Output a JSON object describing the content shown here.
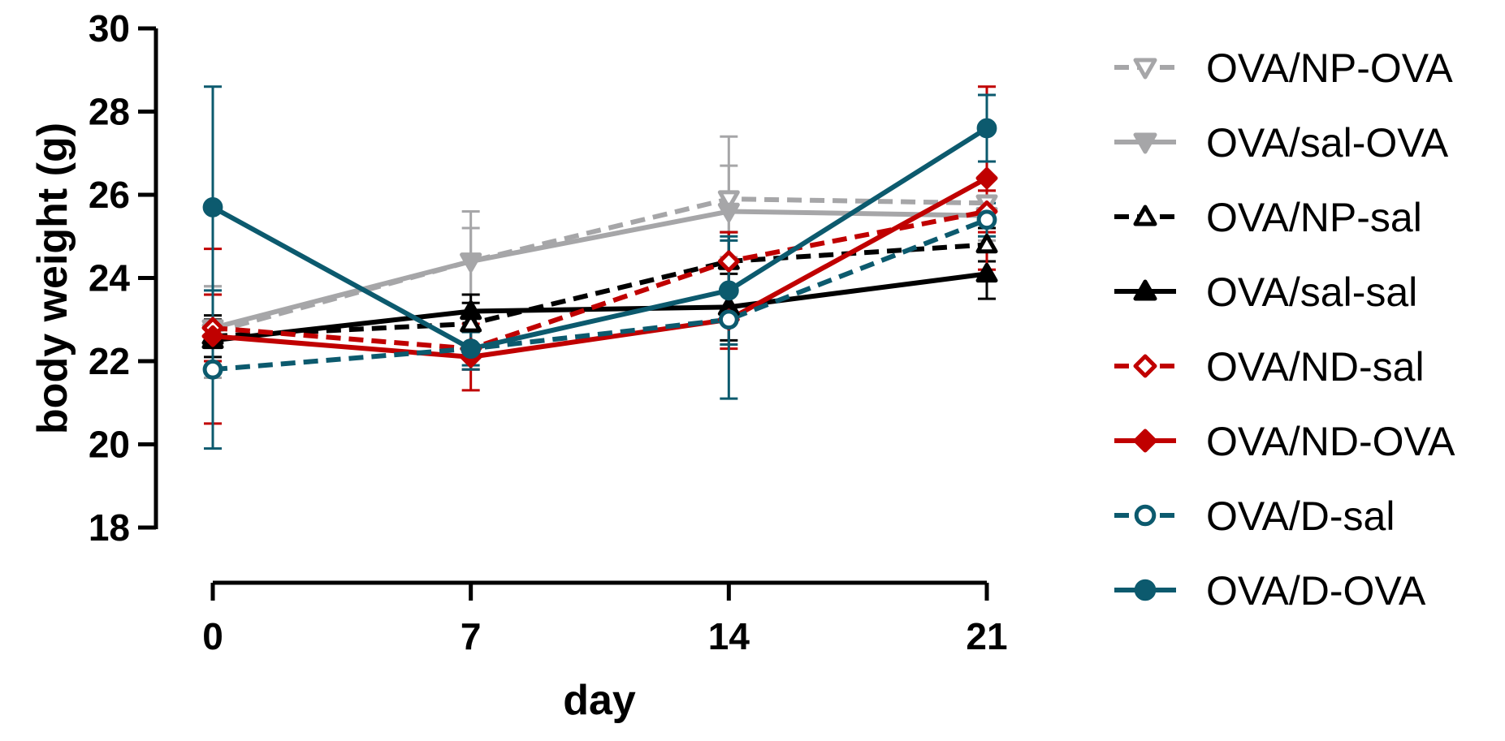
{
  "chart_data": {
    "type": "line",
    "title": "",
    "xlabel": "day",
    "ylabel": "body weight (g)",
    "x": [
      0,
      7,
      14,
      21
    ],
    "x_tick_labels": [
      "0",
      "7",
      "14",
      "21"
    ],
    "ylim": [
      18,
      30
    ],
    "y_ticks": [
      18,
      20,
      22,
      24,
      26,
      28,
      30
    ],
    "y_tick_labels": [
      "18",
      "20",
      "22",
      "24",
      "26",
      "28",
      "30"
    ],
    "legend_position": "right",
    "series": [
      {
        "name": "OVA/NP-OVA",
        "values": [
          22.7,
          24.4,
          25.9,
          25.8
        ],
        "errors": [
          1.1,
          1.2,
          1.5,
          0.6
        ],
        "color": "#a6a6a8",
        "dashed": true,
        "marker": "triangle-down",
        "filled": false
      },
      {
        "name": "OVA/sal-OVA",
        "values": [
          22.8,
          24.4,
          25.6,
          25.5
        ],
        "errors": [
          1.0,
          0.8,
          1.1,
          0.6
        ],
        "color": "#a6a6a8",
        "dashed": false,
        "marker": "triangle-down",
        "filled": true
      },
      {
        "name": "OVA/NP-sal",
        "values": [
          22.6,
          22.9,
          24.4,
          24.8
        ],
        "errors": [
          0.5,
          0.5,
          0.7,
          0.4
        ],
        "color": "#000000",
        "dashed": true,
        "marker": "triangle-up",
        "filled": false
      },
      {
        "name": "OVA/sal-sal",
        "values": [
          22.5,
          23.2,
          23.3,
          24.1
        ],
        "errors": [
          0.5,
          0.4,
          0.8,
          0.6
        ],
        "color": "#000000",
        "dashed": false,
        "marker": "triangle-up",
        "filled": true
      },
      {
        "name": "OVA/ND-sal",
        "values": [
          22.8,
          22.3,
          24.4,
          25.6
        ],
        "errors": [
          0.8,
          0.5,
          0.7,
          0.5
        ],
        "color": "#c00000",
        "dashed": true,
        "marker": "diamond",
        "filled": false
      },
      {
        "name": "OVA/ND-OVA",
        "values": [
          22.6,
          22.1,
          23.0,
          26.4
        ],
        "errors": [
          2.1,
          0.8,
          0.7,
          2.2
        ],
        "color": "#c00000",
        "dashed": false,
        "marker": "diamond",
        "filled": true
      },
      {
        "name": "OVA/D-sal",
        "values": [
          21.8,
          22.3,
          23.0,
          25.4
        ],
        "errors": [
          1.9,
          0.4,
          1.9,
          0.4
        ],
        "color": "#0c5a6e",
        "dashed": true,
        "marker": "circle",
        "filled": false
      },
      {
        "name": "OVA/D-OVA",
        "values": [
          25.7,
          22.3,
          23.7,
          27.6
        ],
        "errors": [
          2.9,
          0.5,
          1.3,
          0.8
        ],
        "color": "#0c5a6e",
        "dashed": false,
        "marker": "circle",
        "filled": true
      }
    ]
  }
}
